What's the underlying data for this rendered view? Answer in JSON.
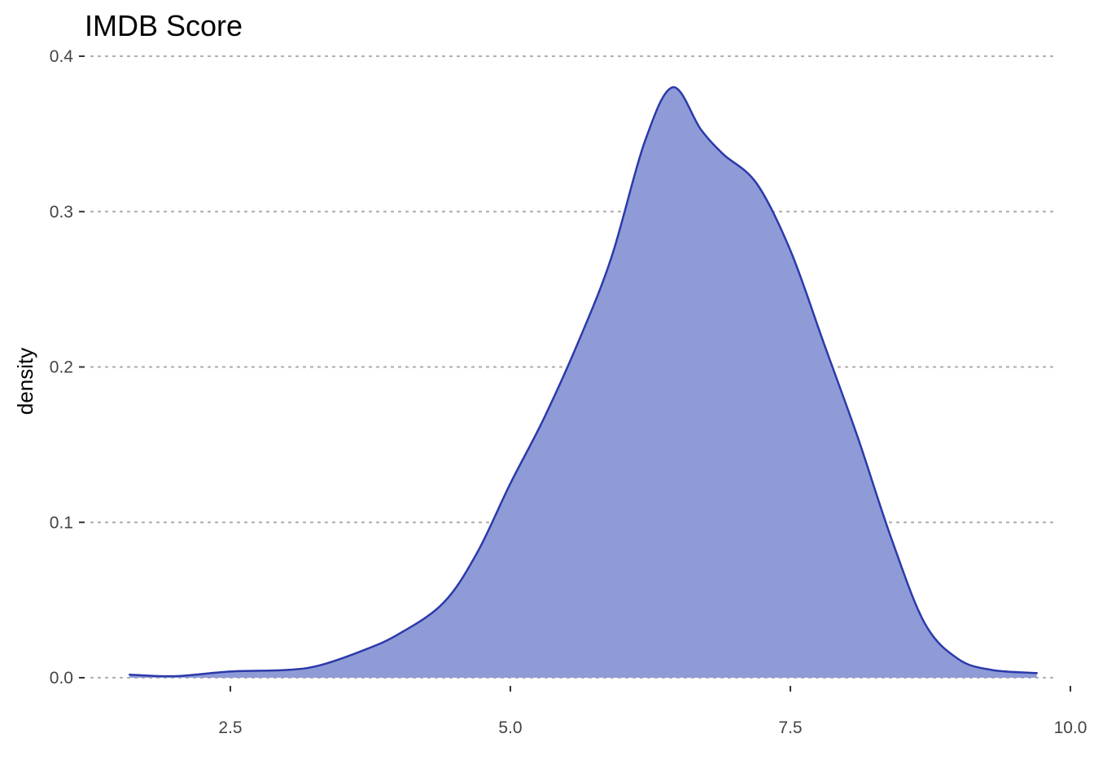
{
  "chart_data": {
    "type": "area",
    "title": "IMDB Score",
    "xlabel": "",
    "ylabel": "density",
    "xlim": [
      1.4,
      10.0
    ],
    "ylim": [
      0.0,
      0.4
    ],
    "x_ticks": [
      "2.5",
      "5.0",
      "7.5",
      "10.0"
    ],
    "y_ticks": [
      "0.0",
      "0.1",
      "0.2",
      "0.3",
      "0.4"
    ],
    "grid": {
      "horizontal": true,
      "vertical": false,
      "style": "dotted"
    },
    "legend": "none",
    "colors": {
      "fill": "#8f9bd6",
      "line": "#2b3aaa"
    },
    "series": [
      {
        "x": [
          1.6,
          2.0,
          2.5,
          3.0,
          3.3,
          3.7,
          4.0,
          4.4,
          4.7,
          5.0,
          5.3,
          5.6,
          5.9,
          6.2,
          6.45,
          6.7,
          6.9,
          7.2,
          7.5,
          7.8,
          8.1,
          8.4,
          8.7,
          9.0,
          9.3,
          9.7
        ],
        "y": [
          0.002,
          0.001,
          0.004,
          0.005,
          0.008,
          0.018,
          0.028,
          0.048,
          0.08,
          0.125,
          0.167,
          0.215,
          0.27,
          0.345,
          0.38,
          0.353,
          0.337,
          0.318,
          0.275,
          0.215,
          0.155,
          0.09,
          0.035,
          0.012,
          0.005,
          0.003
        ]
      }
    ]
  }
}
